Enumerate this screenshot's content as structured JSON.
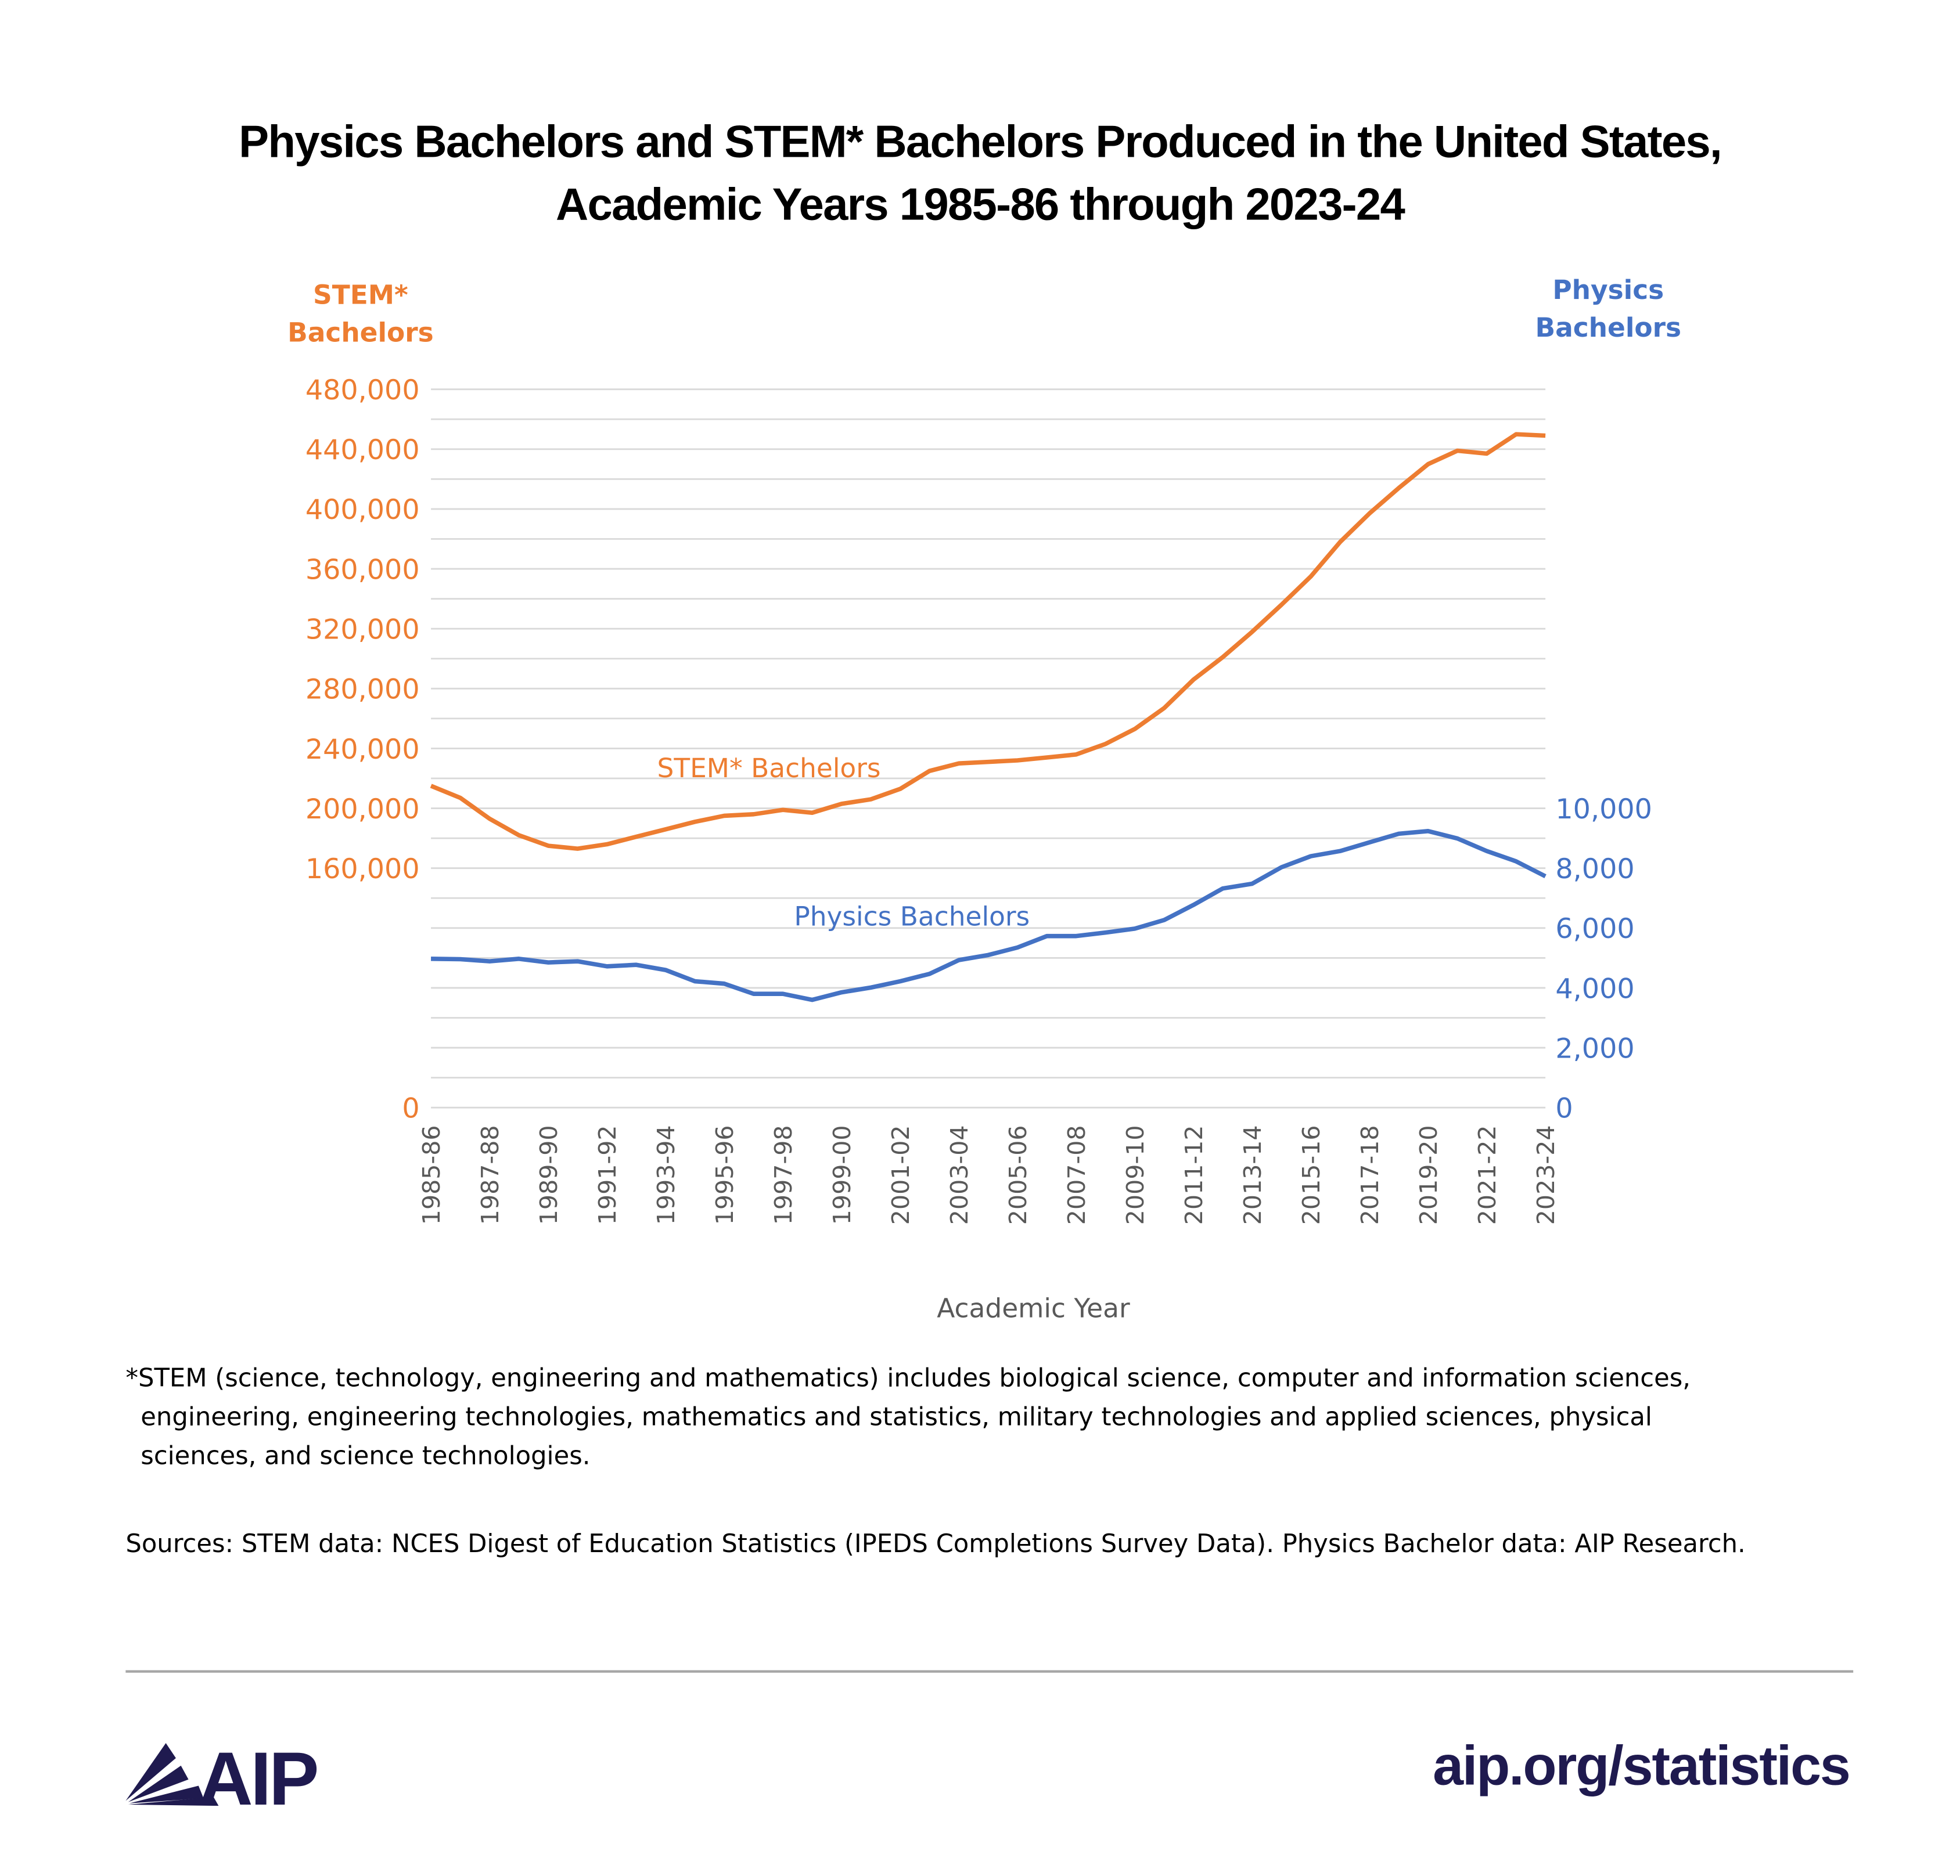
{
  "title_line1": "Physics Bachelors and STEM* Bachelors Produced in the United States,",
  "title_line2": "Academic Years 1985-86 through 2023-24",
  "footnote_line1": "*STEM (science, technology, engineering and mathematics) includes biological science, computer and information sciences,",
  "footnote_line2": "engineering, engineering technologies, mathematics and statistics, military technologies and applied sciences, physical",
  "footnote_line3": "sciences, and science technologies.",
  "sources": "Sources: STEM data: NCES Digest of Education Statistics (IPEDS Completions Survey Data).  Physics Bachelor data: AIP Research.",
  "logo_text": "AIP",
  "url": "aip.org/statistics",
  "chart_data": {
    "type": "line",
    "title": "Physics Bachelors and STEM* Bachelors Produced in the United States, Academic Years 1985-86 through 2023-24",
    "xlabel": "Academic Year",
    "ylabel_left": "STEM* Bachelors",
    "ylabel_right": "Physics Bachelors",
    "ylim_left": [
      0,
      480000
    ],
    "ylim_right": [
      0,
      24000
    ],
    "left_ticks": [
      "480,000",
      "440,000",
      "400,000",
      "360,000",
      "320,000",
      "280,000",
      "240,000",
      "200,000",
      "160,000",
      "0"
    ],
    "left_tick_values": [
      480000,
      440000,
      400000,
      360000,
      320000,
      280000,
      240000,
      200000,
      160000,
      0
    ],
    "right_ticks": [
      "10,000",
      "8,000",
      "6,000",
      "4,000",
      "2,000",
      "0"
    ],
    "right_tick_values": [
      10000,
      8000,
      6000,
      4000,
      2000,
      0
    ],
    "grid": true,
    "grid_step_left": 20000,
    "categories": [
      "1985-86",
      "1986-87",
      "1987-88",
      "1988-89",
      "1989-90",
      "1990-91",
      "1991-92",
      "1992-93",
      "1993-94",
      "1994-95",
      "1995-96",
      "1996-97",
      "1997-98",
      "1998-99",
      "1999-00",
      "2000-01",
      "2001-02",
      "2002-03",
      "2003-04",
      "2004-05",
      "2005-06",
      "2006-07",
      "2007-08",
      "2008-09",
      "2009-10",
      "2010-11",
      "2011-12",
      "2012-13",
      "2013-14",
      "2014-15",
      "2015-16",
      "2016-17",
      "2017-18",
      "2018-19",
      "2019-20",
      "2020-21",
      "2021-22",
      "2022-23",
      "2023-24"
    ],
    "series": [
      {
        "name": "STEM* Bachelors",
        "axis": "left",
        "color": "#ED7D31",
        "values": [
          215000,
          207000,
          193000,
          182000,
          175000,
          173000,
          176000,
          181000,
          186000,
          191000,
          195000,
          196000,
          199000,
          197000,
          203000,
          206000,
          213000,
          225000,
          230000,
          231000,
          232000,
          234000,
          236000,
          243000,
          253000,
          267000,
          286000,
          301000,
          318000,
          336000,
          355000,
          378000,
          397000,
          414000,
          430000,
          439000,
          437000,
          450000,
          449000
        ]
      },
      {
        "name": "Physics Bachelors",
        "axis": "right",
        "color": "#4472C4",
        "values": [
          4970,
          4960,
          4890,
          4970,
          4850,
          4890,
          4720,
          4770,
          4600,
          4220,
          4140,
          3800,
          3800,
          3600,
          3850,
          4010,
          4220,
          4470,
          4930,
          5100,
          5350,
          5730,
          5730,
          5850,
          5980,
          6270,
          6770,
          7320,
          7480,
          8030,
          8400,
          8570,
          8860,
          9150,
          9240,
          8990,
          8570,
          8230,
          7730
        ]
      }
    ]
  }
}
